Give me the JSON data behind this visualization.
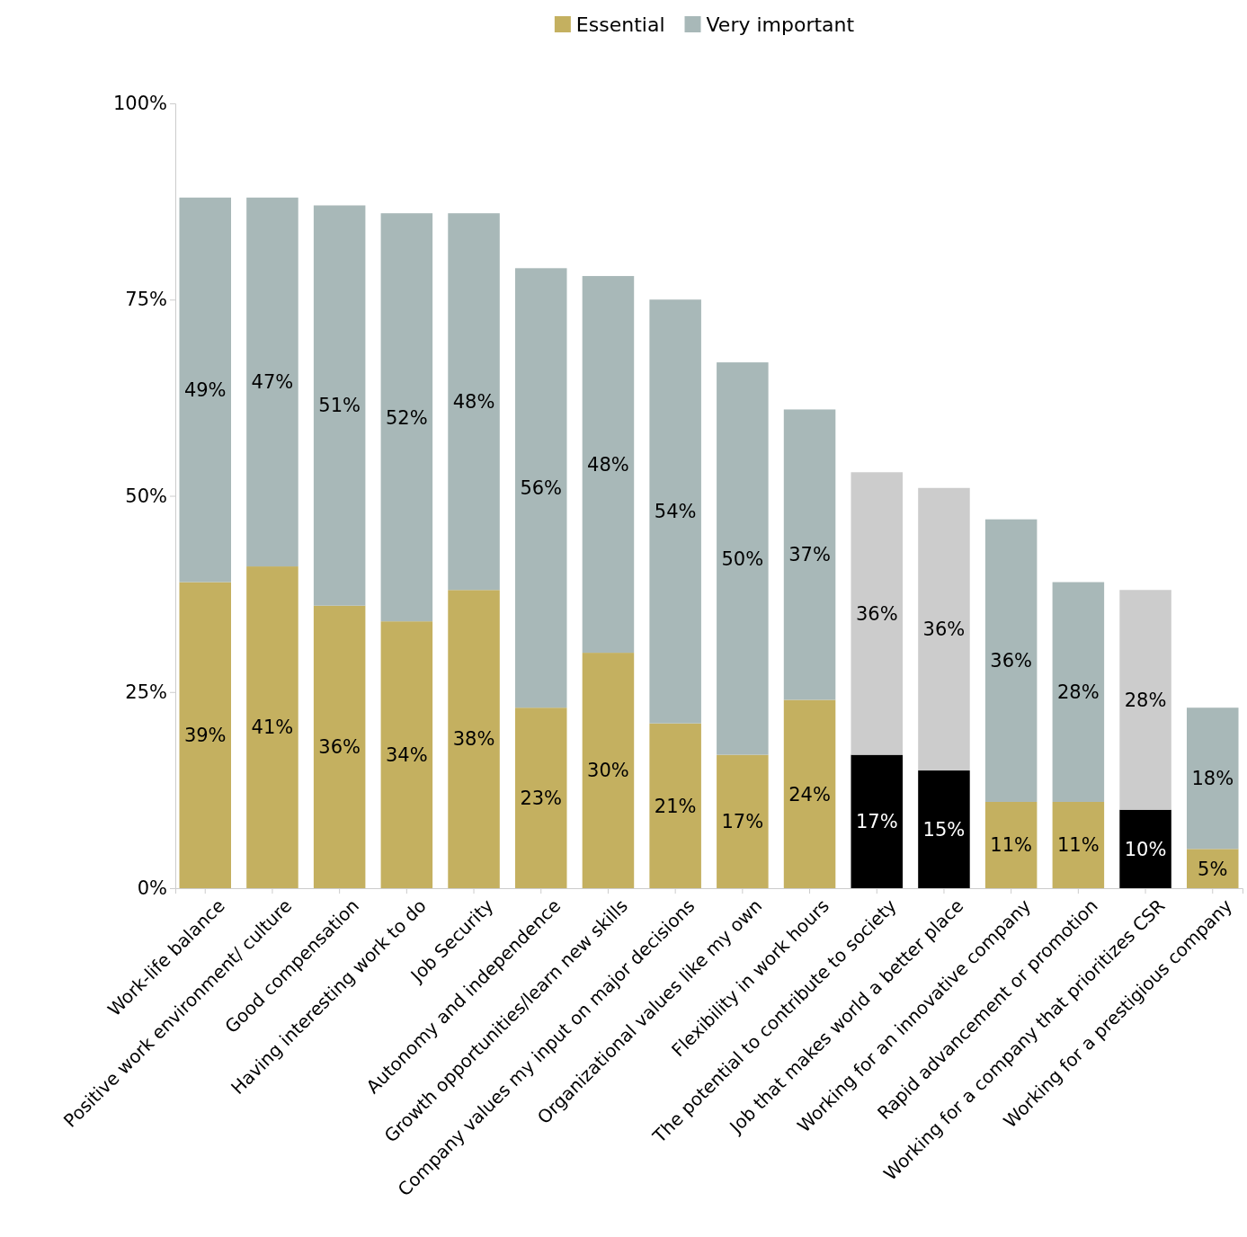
{
  "chart_data": {
    "type": "bar",
    "stacked": true,
    "categories": [
      "Work-life balance",
      "Positive work environment/ culture",
      "Good compensation",
      "Having interesting work to do",
      "Job Security",
      "Autonomy and independence",
      "Growth opportunities/learn new skills",
      "Company values my input on major decisions",
      "Organizational values like my own",
      "Flexibility in work hours",
      "The potential to contribute to society",
      "Job that makes world a better place",
      "Working for an innovative company",
      "Rapid advancement or promotion",
      "Working for  a company that prioritizes CSR",
      "Working for a prestigious company"
    ],
    "series": [
      {
        "name": "Essential",
        "color": "#c4b060",
        "colors": [
          "#c4b060",
          "#c4b060",
          "#c4b060",
          "#c4b060",
          "#c4b060",
          "#c4b060",
          "#c4b060",
          "#c4b060",
          "#c4b060",
          "#c4b060",
          "#000000",
          "#000000",
          "#c4b060",
          "#c4b060",
          "#000000",
          "#c4b060"
        ],
        "values": [
          39,
          41,
          36,
          34,
          38,
          23,
          30,
          21,
          17,
          24,
          17,
          15,
          11,
          11,
          10,
          5
        ],
        "value_labels": [
          "39%",
          "41%",
          "36%",
          "34%",
          "38%",
          "23%",
          "30%",
          "21%",
          "17%",
          "24%",
          "17%",
          "15%",
          "11%",
          "11%",
          "10%",
          "5%"
        ]
      },
      {
        "name": "Very important",
        "color": "#a8b8b8",
        "colors": [
          "#a8b8b8",
          "#a8b8b8",
          "#a8b8b8",
          "#a8b8b8",
          "#a8b8b8",
          "#a8b8b8",
          "#a8b8b8",
          "#a8b8b8",
          "#a8b8b8",
          "#a8b8b8",
          "#cccccc",
          "#cccccc",
          "#a8b8b8",
          "#a8b8b8",
          "#cccccc",
          "#a8b8b8"
        ],
        "values": [
          49,
          47,
          51,
          52,
          48,
          56,
          48,
          54,
          50,
          37,
          36,
          36,
          36,
          28,
          28,
          18
        ],
        "value_labels": [
          "49%",
          "47%",
          "51%",
          "52%",
          "48%",
          "56%",
          "48%",
          "54%",
          "50%",
          "37%",
          "36%",
          "36%",
          "36%",
          "28%",
          "28%",
          "18%"
        ]
      }
    ],
    "ylim": [
      0,
      100
    ],
    "yticks": [
      {
        "value": 0,
        "label": "0%"
      },
      {
        "value": 25,
        "label": "25%"
      },
      {
        "value": 50,
        "label": "50%"
      },
      {
        "value": 75,
        "label": "75%"
      },
      {
        "value": 100,
        "label": "100%"
      }
    ],
    "legend": "top",
    "grid": false
  }
}
